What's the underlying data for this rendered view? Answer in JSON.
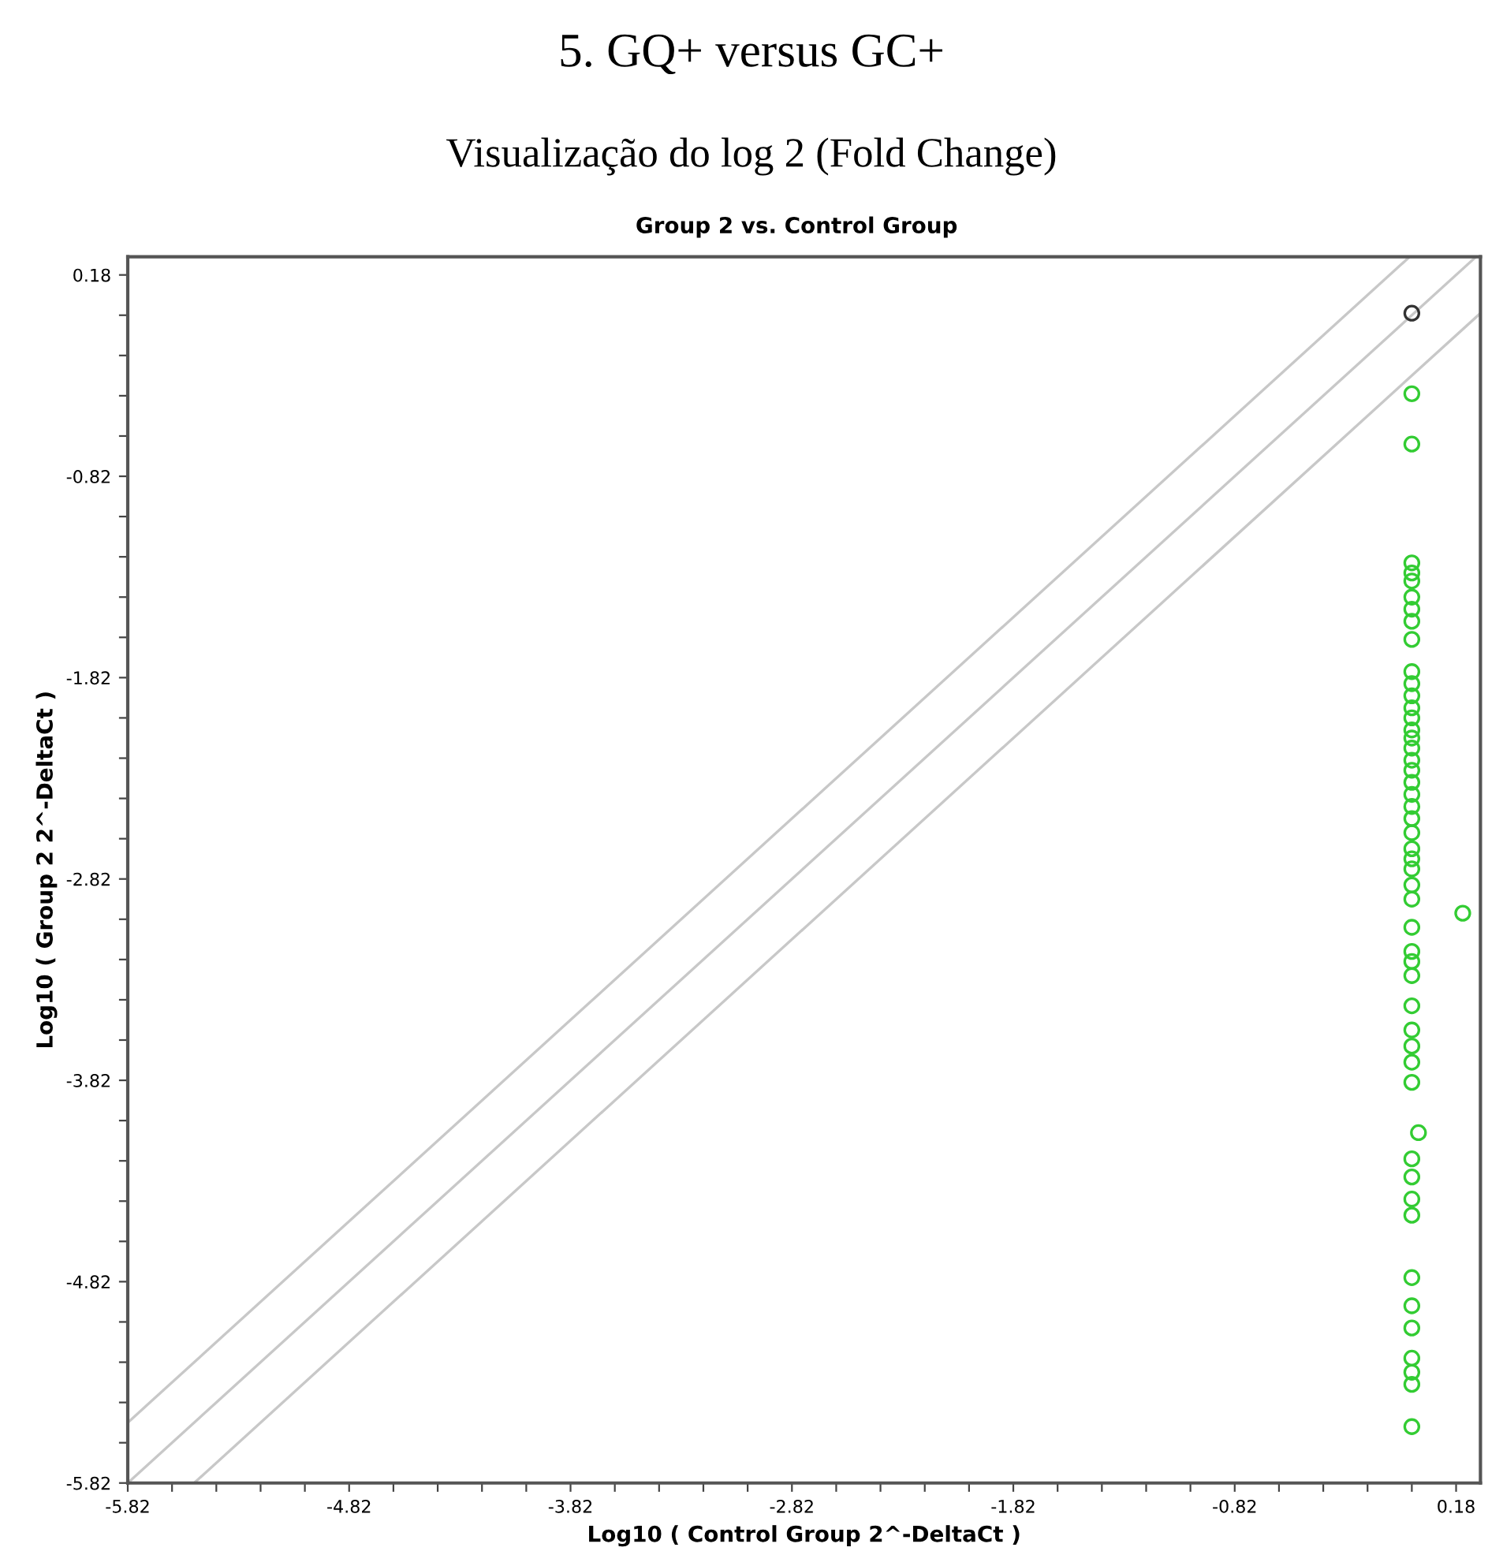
{
  "chart_data": {
    "type": "scatter",
    "title": "5. GQ+ versus GC+",
    "subtitle": "Visualização do log 2 (Fold Change)",
    "annotations": [
      "Group 2 vs. Control Group"
    ],
    "xlabel": "Log10 ( Control Group 2^-DeltaCt )",
    "ylabel": "Log10 ( Group 2 2^-DeltaCt )",
    "xlim": [
      -5.82,
      0.29
    ],
    "ylim": [
      -5.82,
      0.27
    ],
    "xticks": [
      -5.82,
      {
        "value": -5.62,
        "label": null
      },
      {
        "value": -5.42,
        "label": null
      },
      {
        "value": -5.22,
        "label": null
      },
      {
        "value": -5.02,
        "label": null
      },
      -4.82,
      {
        "value": -4.62,
        "label": null
      },
      {
        "value": -4.42,
        "label": null
      },
      {
        "value": -4.22,
        "label": null
      },
      {
        "value": -4.02,
        "label": null
      },
      -3.82,
      {
        "value": -3.62,
        "label": null
      },
      {
        "value": -3.42,
        "label": null
      },
      {
        "value": -3.22,
        "label": null
      },
      {
        "value": -3.02,
        "label": null
      },
      -2.82,
      {
        "value": -2.62,
        "label": null
      },
      {
        "value": -2.42,
        "label": null
      },
      {
        "value": -2.22,
        "label": null
      },
      {
        "value": -2.02,
        "label": null
      },
      -1.82,
      {
        "value": -1.62,
        "label": null
      },
      {
        "value": -1.42,
        "label": null
      },
      {
        "value": -1.22,
        "label": null
      },
      {
        "value": -1.02,
        "label": null
      },
      -0.82,
      {
        "value": -0.62,
        "label": null
      },
      {
        "value": -0.42,
        "label": null
      },
      {
        "value": -0.22,
        "label": null
      },
      {
        "value": -0.02,
        "label": null
      },
      0.18
    ],
    "yticks": [
      -5.82,
      {
        "value": -5.62,
        "label": null
      },
      {
        "value": -5.42,
        "label": null
      },
      {
        "value": -5.22,
        "label": null
      },
      {
        "value": -5.02,
        "label": null
      },
      -4.82,
      {
        "value": -4.62,
        "label": null
      },
      {
        "value": -4.42,
        "label": null
      },
      {
        "value": -4.22,
        "label": null
      },
      {
        "value": -4.02,
        "label": null
      },
      -3.82,
      {
        "value": -3.62,
        "label": null
      },
      {
        "value": -3.42,
        "label": null
      },
      {
        "value": -3.22,
        "label": null
      },
      {
        "value": -3.02,
        "label": null
      },
      -2.82,
      {
        "value": -2.62,
        "label": null
      },
      {
        "value": -2.42,
        "label": null
      },
      {
        "value": -2.22,
        "label": null
      },
      {
        "value": -2.02,
        "label": null
      },
      -1.82,
      {
        "value": -1.62,
        "label": null
      },
      {
        "value": -1.42,
        "label": null
      },
      {
        "value": -1.22,
        "label": null
      },
      {
        "value": -1.02,
        "label": null
      },
      -0.82,
      {
        "value": -0.62,
        "label": null
      },
      {
        "value": -0.42,
        "label": null
      },
      {
        "value": -0.22,
        "label": null
      },
      {
        "value": -0.02,
        "label": null
      },
      0.18
    ],
    "grid": false,
    "legend": false,
    "marker": "circle",
    "series": [
      {
        "type": "line",
        "marker": "none",
        "color": "#c8c8c8",
        "x": [
          -5.82,
          -0.03
        ],
        "values": [
          -5.52,
          0.27
        ]
      },
      {
        "type": "line",
        "marker": "none",
        "color": "#c8c8c8",
        "x": [
          -5.82,
          0.27
        ],
        "values": [
          -5.82,
          0.27
        ]
      },
      {
        "type": "line",
        "marker": "none",
        "color": "#c8c8c8",
        "x": [
          -5.52,
          0.29
        ],
        "values": [
          -5.82,
          -0.01
        ]
      },
      {
        "color": "#333333",
        "x": [
          -0.02
        ],
        "values": [
          -0.01
        ]
      },
      {
        "color": "#33cc33",
        "x": [
          -0.02,
          -0.02,
          -0.02,
          -0.02,
          -0.02,
          -0.02,
          -0.02,
          -0.02,
          -0.02,
          -0.02,
          -0.02,
          -0.02,
          -0.02,
          -0.02,
          -0.02,
          -0.02,
          -0.02,
          -0.02,
          -0.02,
          -0.02,
          -0.02,
          -0.02,
          -0.02,
          -0.02,
          -0.02,
          -0.02,
          -0.02,
          -0.02,
          -0.02,
          -0.02,
          -0.02,
          -0.02,
          -0.02,
          -0.02,
          -0.02,
          -0.02,
          -0.02,
          -0.02,
          0.01,
          -0.02,
          -0.02,
          -0.02,
          -0.02,
          -0.02,
          -0.02,
          -0.02,
          -0.02,
          -0.02,
          -0.02,
          -0.02,
          0.21
        ],
        "values": [
          -0.41,
          -0.66,
          -1.25,
          -1.3,
          -1.34,
          -1.42,
          -1.48,
          -1.54,
          -1.63,
          -1.79,
          -1.85,
          -1.91,
          -1.97,
          -2.02,
          -2.08,
          -2.12,
          -2.17,
          -2.23,
          -2.28,
          -2.34,
          -2.4,
          -2.46,
          -2.52,
          -2.59,
          -2.67,
          -2.72,
          -2.77,
          -2.85,
          -2.92,
          -3.06,
          -3.18,
          -3.23,
          -3.3,
          -3.45,
          -3.57,
          -3.65,
          -3.73,
          -3.83,
          -4.08,
          -4.21,
          -4.3,
          -4.41,
          -4.49,
          -4.8,
          -4.94,
          -5.05,
          -5.2,
          -5.27,
          -5.33,
          -5.54,
          -2.99
        ]
      }
    ]
  }
}
